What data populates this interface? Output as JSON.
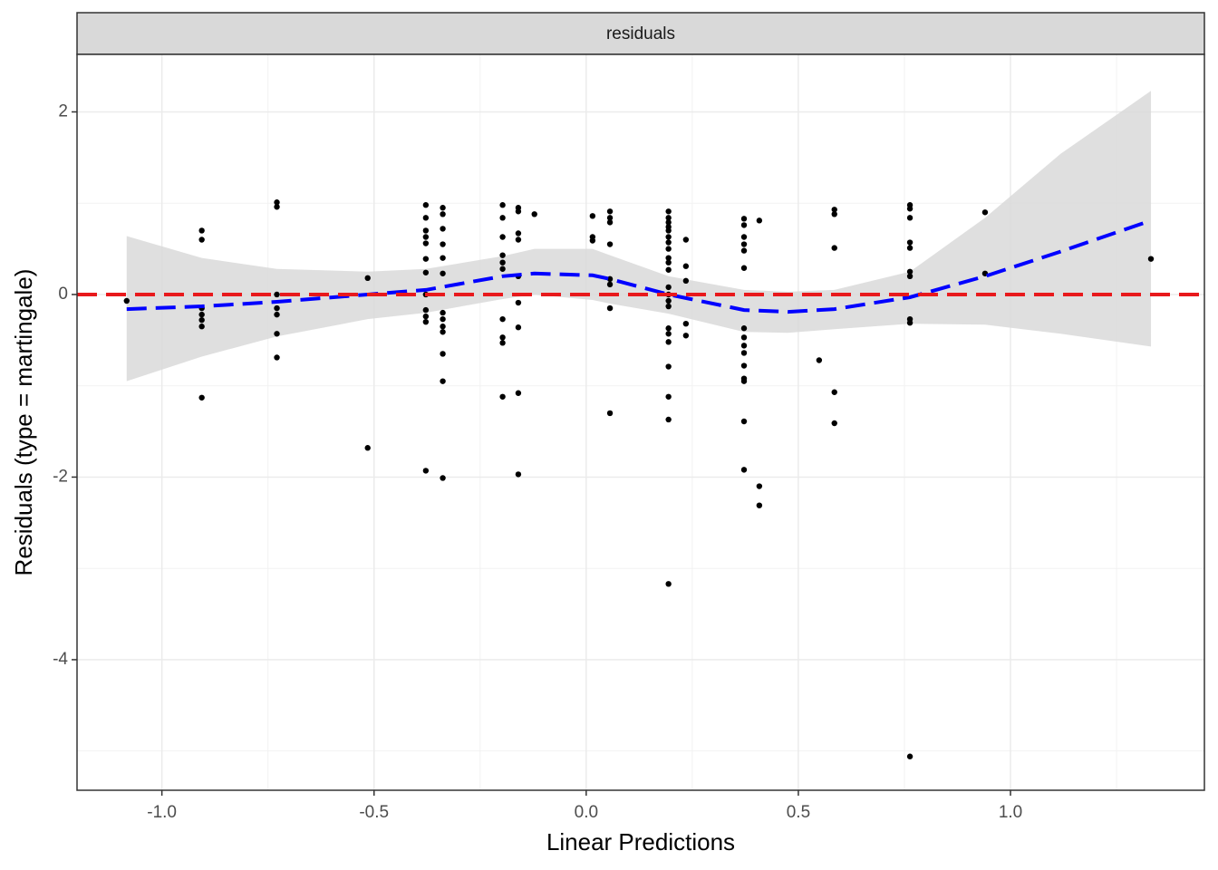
{
  "chart_data": {
    "type": "scatter",
    "strip_label": "residuals",
    "x_label": "Linear Predictions",
    "y_label": "Residuals (type = martingale)",
    "xlim": [
      -1.2,
      1.457
    ],
    "ylim": [
      -5.43,
      2.63
    ],
    "xticks": [
      {
        "value": -1.0,
        "label": "-1.0"
      },
      -0.5,
      {
        "value": 0.0,
        "label": "0.0"
      },
      0.5,
      {
        "value": 1.0,
        "label": "1.0"
      }
    ],
    "yticks": [
      -4,
      -2,
      0,
      2
    ],
    "xminor": [
      -0.75,
      -0.25,
      0.25,
      0.75,
      1.25
    ],
    "yminor": [
      -5,
      -3,
      -1,
      1
    ],
    "grid": true,
    "point_color": "#000000",
    "points": [
      [
        -1.083,
        -0.07
      ],
      [
        -0.906,
        0.7
      ],
      [
        -0.906,
        0.6
      ],
      [
        -0.906,
        -0.15
      ],
      [
        -0.906,
        -0.22
      ],
      [
        -0.906,
        -0.28
      ],
      [
        -0.906,
        -0.35
      ],
      [
        -0.906,
        -1.13
      ],
      [
        -0.729,
        1.01
      ],
      [
        -0.729,
        0.96
      ],
      [
        -0.729,
        0
      ],
      [
        -0.729,
        -0.15
      ],
      [
        -0.729,
        -0.22
      ],
      [
        -0.729,
        -0.43
      ],
      [
        -0.729,
        -0.69
      ],
      [
        -0.515,
        0.18
      ],
      [
        -0.515,
        -1.68
      ],
      [
        -0.378,
        0.98
      ],
      [
        -0.378,
        0.84
      ],
      [
        -0.378,
        0.7
      ],
      [
        -0.378,
        0.63
      ],
      [
        -0.378,
        0.56
      ],
      [
        -0.378,
        0.39
      ],
      [
        -0.378,
        0.24
      ],
      [
        -0.378,
        0
      ],
      [
        -0.378,
        -0.17
      ],
      [
        -0.378,
        -0.24
      ],
      [
        -0.378,
        -0.3
      ],
      [
        -0.378,
        -1.93
      ],
      [
        -0.338,
        0.95
      ],
      [
        -0.338,
        0.88
      ],
      [
        -0.338,
        0.72
      ],
      [
        -0.338,
        0.55
      ],
      [
        -0.338,
        0.4
      ],
      [
        -0.338,
        0.23
      ],
      [
        -0.338,
        -0.2
      ],
      [
        -0.338,
        -0.27
      ],
      [
        -0.338,
        -0.35
      ],
      [
        -0.338,
        -0.41
      ],
      [
        -0.338,
        -0.65
      ],
      [
        -0.338,
        -0.95
      ],
      [
        -0.338,
        -2.01
      ],
      [
        -0.197,
        0.98
      ],
      [
        -0.197,
        0.84
      ],
      [
        -0.197,
        0.63
      ],
      [
        -0.197,
        0.43
      ],
      [
        -0.197,
        0.35
      ],
      [
        -0.197,
        0.28
      ],
      [
        -0.197,
        -0.27
      ],
      [
        -0.197,
        -0.47
      ],
      [
        -0.197,
        -0.53
      ],
      [
        -0.197,
        -1.12
      ],
      [
        -0.16,
        0.95
      ],
      [
        -0.16,
        0.91
      ],
      [
        -0.16,
        0.67
      ],
      [
        -0.16,
        0.6
      ],
      [
        -0.16,
        0.2
      ],
      [
        -0.16,
        -0.09
      ],
      [
        -0.16,
        -0.36
      ],
      [
        -0.16,
        -1.08
      ],
      [
        -0.16,
        -1.97
      ],
      [
        -0.122,
        0.88
      ],
      [
        0.015,
        0.86
      ],
      [
        0.015,
        0.63
      ],
      [
        0.015,
        0.59
      ],
      [
        0.056,
        0.91
      ],
      [
        0.056,
        0.84
      ],
      [
        0.056,
        0.79
      ],
      [
        0.056,
        0.55
      ],
      [
        0.056,
        0.17
      ],
      [
        0.056,
        0.11
      ],
      [
        0.056,
        -0.15
      ],
      [
        0.056,
        -1.3
      ],
      [
        0.194,
        0.91
      ],
      [
        0.194,
        0.84
      ],
      [
        0.194,
        0.79
      ],
      [
        0.194,
        0.74
      ],
      [
        0.194,
        0.7
      ],
      [
        0.194,
        0.63
      ],
      [
        0.194,
        0.57
      ],
      [
        0.194,
        0.5
      ],
      [
        0.194,
        0.4
      ],
      [
        0.194,
        0.35
      ],
      [
        0.194,
        0.27
      ],
      [
        0.194,
        0.08
      ],
      [
        0.194,
        0
      ],
      [
        0.194,
        -0.07
      ],
      [
        0.194,
        -0.13
      ],
      [
        0.194,
        -0.37
      ],
      [
        0.194,
        -0.43
      ],
      [
        0.194,
        -0.52
      ],
      [
        0.194,
        -0.79
      ],
      [
        0.194,
        -1.12
      ],
      [
        0.194,
        -1.37
      ],
      [
        0.194,
        -3.17
      ],
      [
        0.235,
        0.6
      ],
      [
        0.235,
        0.31
      ],
      [
        0.235,
        0.15
      ],
      [
        0.235,
        -0.32
      ],
      [
        0.235,
        -0.45
      ],
      [
        0.372,
        0.83
      ],
      [
        0.372,
        0.76
      ],
      [
        0.372,
        0.63
      ],
      [
        0.372,
        0.55
      ],
      [
        0.372,
        0.48
      ],
      [
        0.372,
        0.29
      ],
      [
        0.372,
        -0.37
      ],
      [
        0.372,
        -0.47
      ],
      [
        0.372,
        -0.56
      ],
      [
        0.372,
        -0.64
      ],
      [
        0.372,
        -0.78
      ],
      [
        0.372,
        -0.92
      ],
      [
        0.372,
        -0.95
      ],
      [
        0.372,
        -1.39
      ],
      [
        0.372,
        -1.92
      ],
      [
        0.408,
        0.81
      ],
      [
        0.408,
        -2.1
      ],
      [
        0.408,
        -2.31
      ],
      [
        0.549,
        -0.72
      ],
      [
        0.585,
        0.93
      ],
      [
        0.585,
        0.88
      ],
      [
        0.585,
        0.51
      ],
      [
        0.585,
        -1.07
      ],
      [
        0.585,
        -1.41
      ],
      [
        0.763,
        0.98
      ],
      [
        0.763,
        0.94
      ],
      [
        0.763,
        0.84
      ],
      [
        0.763,
        0.57
      ],
      [
        0.763,
        0.51
      ],
      [
        0.763,
        0.25
      ],
      [
        0.763,
        0.2
      ],
      [
        0.763,
        -0.27
      ],
      [
        0.763,
        -0.31
      ],
      [
        0.763,
        -5.06
      ],
      [
        0.94,
        0.9
      ],
      [
        0.94,
        0.23
      ],
      [
        1.331,
        0.39
      ]
    ],
    "smooth": {
      "color": "#0000ff",
      "ribbon_color": "#d9d9d9",
      "x": [
        -1.083,
        -0.906,
        -0.729,
        -0.515,
        -0.378,
        -0.197,
        -0.122,
        0.015,
        0.056,
        0.194,
        0.372,
        0.476,
        0.585,
        0.763,
        0.94,
        1.118,
        1.331
      ],
      "y": [
        -0.16,
        -0.13,
        -0.08,
        0,
        0.05,
        0.2,
        0.23,
        0.21,
        0.17,
        0,
        -0.17,
        -0.19,
        -0.16,
        -0.03,
        0.2,
        0.47,
        0.81
      ],
      "ymax": [
        0.64,
        0.4,
        0.28,
        0.25,
        0.28,
        0.42,
        0.5,
        0.5,
        0.43,
        0.2,
        0.05,
        0.03,
        0.05,
        0.25,
        0.84,
        1.54,
        2.23
      ],
      "ymin": [
        -0.95,
        -0.68,
        -0.46,
        -0.27,
        -0.2,
        -0.05,
        0,
        -0.06,
        -0.1,
        -0.21,
        -0.41,
        -0.42,
        -0.38,
        -0.32,
        -0.33,
        -0.43,
        -0.57
      ]
    },
    "hline": {
      "y": 0,
      "color": "#e8191c"
    }
  }
}
